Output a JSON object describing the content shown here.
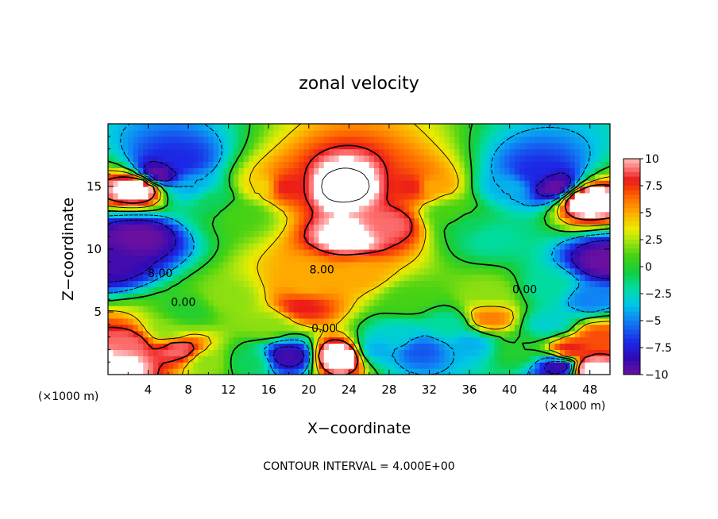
{
  "chart_data": {
    "type": "heatmap",
    "title": "zonal velocity",
    "xlabel": "X−coordinate",
    "ylabel": "Z−coordinate",
    "x_unit_left": "(×1000 m)",
    "x_unit_right": "(×1000 m)",
    "xlim": [
      0,
      50
    ],
    "ylim": [
      0,
      20
    ],
    "x_ticks": [
      4,
      8,
      12,
      16,
      20,
      24,
      28,
      32,
      36,
      40,
      44,
      48
    ],
    "y_ticks": [
      5,
      10,
      15
    ],
    "colorbar": {
      "min": -10,
      "max": 10,
      "ticks": [
        10,
        7.5,
        5,
        2.5,
        0,
        -2.5,
        -5,
        -7.5,
        -10
      ],
      "tick_labels": [
        "10",
        "7.5",
        "5",
        "2.5",
        "0",
        "−2.5",
        "−5",
        "−7.5",
        "−10"
      ]
    },
    "contour_interval_text": "CONTOUR INTERVAL = 4.000E+00",
    "contour_labels": [
      {
        "text": "8.00",
        "x": 5.2,
        "z": 8.1
      },
      {
        "text": "8.00",
        "x": 21.3,
        "z": 8.4
      },
      {
        "text": "0.00",
        "x": 7.5,
        "z": 5.8
      },
      {
        "text": "0.00",
        "x": 21.5,
        "z": 3.7
      },
      {
        "text": "0.00",
        "x": 41.5,
        "z": 6.8
      }
    ],
    "field_features": [
      {
        "x": 3,
        "z": 15,
        "u": 12
      },
      {
        "x": 0.5,
        "z": 9,
        "u": -9
      },
      {
        "x": 3,
        "z": 11,
        "u": -10
      },
      {
        "x": 5,
        "z": 16,
        "u": -10
      },
      {
        "x": 7,
        "z": 17,
        "u": -7
      },
      {
        "x": 8.5,
        "z": 15,
        "u": -4
      },
      {
        "x": 10.5,
        "z": 14,
        "u": -1
      },
      {
        "x": 13.5,
        "z": 13,
        "u": 1
      },
      {
        "x": 15.5,
        "z": 15,
        "u": 4
      },
      {
        "x": 17.5,
        "z": 15,
        "u": 8
      },
      {
        "x": 23.5,
        "z": 15,
        "u": 13
      },
      {
        "x": 24,
        "z": 11,
        "u": 11
      },
      {
        "x": 28,
        "z": 12,
        "u": 9
      },
      {
        "x": 30.5,
        "z": 15,
        "u": 8
      },
      {
        "x": 32,
        "z": 15,
        "u": 5
      },
      {
        "x": 34,
        "z": 13,
        "u": 1
      },
      {
        "x": 36,
        "z": 12,
        "u": -1
      },
      {
        "x": 38,
        "z": 11,
        "u": -2
      },
      {
        "x": 40,
        "z": 15,
        "u": -4
      },
      {
        "x": 42.5,
        "z": 16,
        "u": -7
      },
      {
        "x": 44.5,
        "z": 15,
        "u": -10
      },
      {
        "x": 47.5,
        "z": 14,
        "u": 12
      },
      {
        "x": 49.5,
        "z": 9,
        "u": -10
      },
      {
        "x": 20,
        "z": 8,
        "u": 5
      },
      {
        "x": 25,
        "z": 8,
        "u": 5
      },
      {
        "x": 19.5,
        "z": 5.5,
        "u": 8
      },
      {
        "x": 20,
        "z": 7,
        "u": 5
      },
      {
        "x": 12,
        "z": 6,
        "u": 2
      },
      {
        "x": 16,
        "z": 4,
        "u": 2
      },
      {
        "x": 8,
        "z": 5,
        "u": 0
      },
      {
        "x": 6,
        "z": 3.5,
        "u": 2
      },
      {
        "x": 2,
        "z": 2.5,
        "u": 9
      },
      {
        "x": 7,
        "z": 2,
        "u": 9
      },
      {
        "x": 1,
        "z": 0.8,
        "u": 11
      },
      {
        "x": 10,
        "z": 1,
        "u": 2
      },
      {
        "x": 14,
        "z": 1,
        "u": -1
      },
      {
        "x": 18,
        "z": 1.5,
        "u": -9
      },
      {
        "x": 23,
        "z": 1.5,
        "u": 12
      },
      {
        "x": 29,
        "z": 3,
        "u": -3
      },
      {
        "x": 31,
        "z": 2,
        "u": -6
      },
      {
        "x": 27,
        "z": 2,
        "u": -4
      },
      {
        "x": 34,
        "z": 4,
        "u": -2
      },
      {
        "x": 36,
        "z": 2.5,
        "u": -4
      },
      {
        "x": 38,
        "z": 4.5,
        "u": 6
      },
      {
        "x": 38,
        "z": 6.5,
        "u": 2
      },
      {
        "x": 41,
        "z": 2,
        "u": 0
      },
      {
        "x": 44,
        "z": 4,
        "u": -3
      },
      {
        "x": 46,
        "z": 2,
        "u": 8
      },
      {
        "x": 49,
        "z": 3,
        "u": 7
      },
      {
        "x": 45,
        "z": 0.7,
        "u": -9
      },
      {
        "x": 48,
        "z": 0.5,
        "u": 11
      },
      {
        "x": 44,
        "z": 7,
        "u": -2
      },
      {
        "x": 48,
        "z": 6,
        "u": -5
      },
      {
        "x": 30,
        "z": 6,
        "u": 1
      }
    ]
  }
}
